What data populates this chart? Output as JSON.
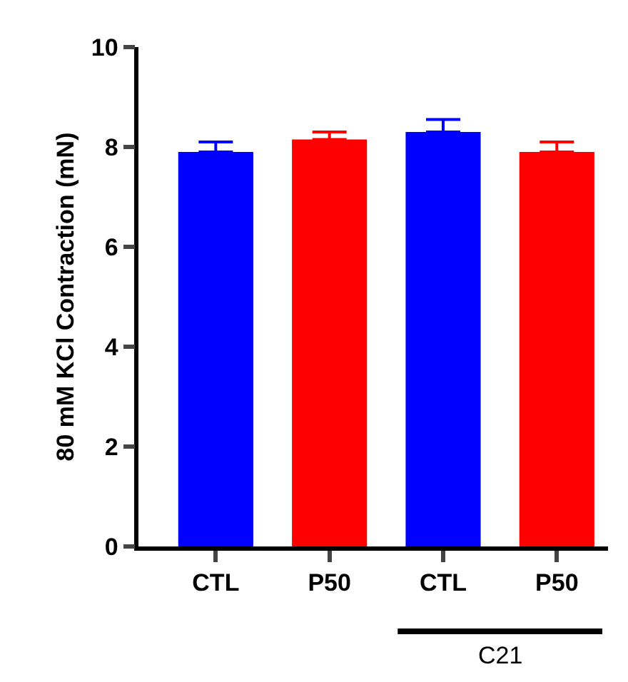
{
  "chart_data": {
    "type": "bar",
    "ylabel": "80 mM KCl Contraction (mN)",
    "categories": [
      "CTL",
      "P50",
      "CTL",
      "P50"
    ],
    "values": [
      7.9,
      8.15,
      8.3,
      7.9
    ],
    "errors": [
      [
        7.9,
        8.1
      ],
      [
        8.15,
        8.3
      ],
      [
        8.3,
        8.55
      ],
      [
        7.9,
        8.1
      ]
    ],
    "colors": [
      "#0000ff",
      "#ff0000",
      "#0000ff",
      "#ff0000"
    ],
    "ylim": [
      0,
      10
    ],
    "yticks": [
      0,
      2,
      4,
      6,
      8,
      10
    ],
    "annotations": [
      "C21"
    ]
  }
}
